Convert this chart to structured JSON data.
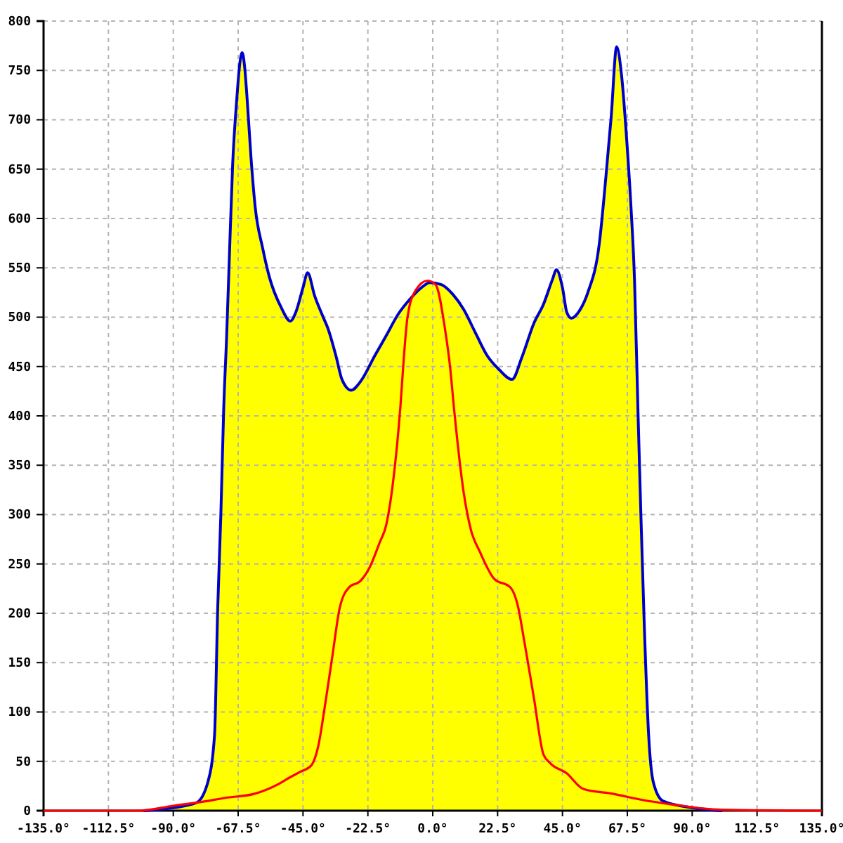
{
  "chart_data": {
    "type": "area",
    "grid": true,
    "xlim": [
      -135,
      135
    ],
    "xticks": [
      {
        "value": -135,
        "label": "-135.0°"
      },
      {
        "value": -112.5,
        "label": "-112.5°"
      },
      {
        "value": -90,
        "label": "-90.0°"
      },
      {
        "value": -67.5,
        "label": "-67.5°"
      },
      {
        "value": -45,
        "label": "-45.0°"
      },
      {
        "value": -22.5,
        "label": "-22.5°"
      },
      {
        "value": 0,
        "label": "0.0°"
      },
      {
        "value": 22.5,
        "label": "22.5°"
      },
      {
        "value": 45,
        "label": "45.0°"
      },
      {
        "value": 67.5,
        "label": "67.5°"
      },
      {
        "value": 90,
        "label": "90.0°"
      },
      {
        "value": 112.5,
        "label": "112.5°"
      },
      {
        "value": 135,
        "label": "135.0°"
      }
    ],
    "ylim": [
      0,
      800
    ],
    "yticks": [
      0,
      50,
      100,
      150,
      200,
      250,
      300,
      350,
      400,
      450,
      500,
      550,
      600,
      650,
      700,
      750,
      800
    ],
    "series": [
      {
        "color": "#ffff00",
        "x": [
          -100,
          -90,
          -82,
          -78,
          -75.7,
          -74.6,
          -73.5,
          -72.5,
          -71.5,
          -70.5,
          -69.4,
          -68,
          -66.8,
          -66.1,
          -65.3,
          -64.5,
          -63,
          -61.6,
          -59,
          -56.7,
          -52.6,
          -49.4,
          -47.5,
          -45,
          -43.4,
          -41,
          -38,
          -36.4,
          -33.5,
          -31.5,
          -28.3,
          -25,
          -20.1,
          -16,
          -12,
          -8,
          -3.9,
          -1,
          3,
          7,
          10.7,
          15,
          18.9,
          23,
          27.5,
          31,
          35.1,
          38.4,
          41.5,
          42.9,
          45,
          46.5,
          48.1,
          51,
          53.8,
          57.8,
          60,
          61.9,
          63.8,
          65.5,
          67.3,
          68.8,
          70,
          71.2,
          72.2,
          73.3,
          74.9,
          76.5,
          79.8,
          90,
          100
        ],
        "values": [
          0,
          3,
          8,
          29,
          76,
          204,
          300,
          408,
          480,
          565,
          655,
          720,
          760,
          768,
          755,
          726,
          660,
          612,
          570,
          541,
          510,
          496,
          505,
          530,
          545,
          522,
          500,
          489,
          460,
          437,
          426,
          435,
          461,
          482,
          503,
          518,
          530,
          535,
          533,
          523,
          508,
          483,
          461,
          447,
          437,
          460,
          494,
          513,
          538,
          548,
          530,
          505,
          499,
          507,
          525,
          575,
          640,
          703,
          774,
          745,
          679,
          610,
          537,
          404,
          300,
          195,
          76,
          29,
          10,
          3,
          0
        ]
      },
      {
        "type": "line",
        "color": "#ff0000",
        "x": [
          -135,
          -102,
          -90,
          -80,
          -72,
          -62,
          -53.5,
          -49.4,
          -46.2,
          -42.1,
          -39.6,
          -37.2,
          -34.8,
          -32.3,
          -29.1,
          -25,
          -21.8,
          -18.5,
          -16.1,
          -13.6,
          -11.2,
          -10,
          -8.8,
          -6,
          -1.8,
          1,
          4.2,
          6,
          7.5,
          10.7,
          13.2,
          16.4,
          21.3,
          27,
          29.4,
          31.8,
          35.1,
          38.4,
          40.8,
          46.4,
          52.2,
          62.7,
          72.5,
          83.8,
          100,
          135
        ],
        "values": [
          0,
          0,
          5,
          9,
          13,
          17,
          27,
          34,
          39,
          46,
          67,
          110,
          157,
          205,
          226,
          233,
          247,
          271,
          290,
          337,
          410,
          460,
          499,
          527,
          537,
          533,
          489,
          450,
          404,
          323,
          285,
          262,
          235,
          226,
          209,
          171,
          114,
          57,
          48,
          38,
          22,
          17,
          11,
          6,
          1,
          0
        ]
      }
    ]
  }
}
